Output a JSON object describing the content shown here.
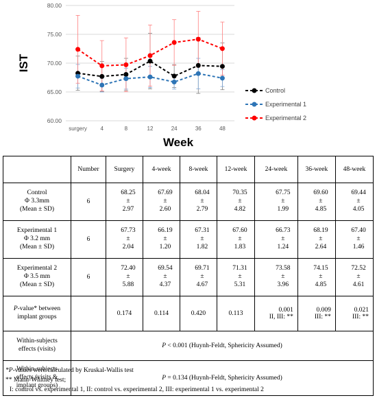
{
  "chart_data": {
    "type": "line",
    "ylabel": "IST",
    "xlabel": "Week",
    "categories": [
      "surgery",
      "4",
      "8",
      "12",
      "24",
      "36",
      "48"
    ],
    "ylim": [
      60,
      80
    ],
    "yticks": [
      "60.00",
      "65.00",
      "70.00",
      "75.00",
      "80.00"
    ],
    "legend_position": "right",
    "series": [
      {
        "name": "Control",
        "color": "#000000",
        "values": [
          68.25,
          67.69,
          68.04,
          70.35,
          67.75,
          69.6,
          69.44
        ],
        "sd": [
          2.97,
          2.6,
          2.79,
          4.82,
          1.99,
          4.85,
          4.05
        ]
      },
      {
        "name": "Experimental 1",
        "color": "#2e75b6",
        "values": [
          67.73,
          66.19,
          67.31,
          67.6,
          66.73,
          68.19,
          67.4
        ],
        "sd": [
          2.04,
          1.2,
          1.82,
          1.83,
          1.24,
          2.64,
          1.46
        ]
      },
      {
        "name": "Experimental 2",
        "color": "#ff0000",
        "values": [
          72.4,
          69.54,
          69.71,
          71.31,
          73.58,
          74.15,
          72.52
        ],
        "sd": [
          5.88,
          4.37,
          4.67,
          5.31,
          3.96,
          4.85,
          4.61
        ]
      }
    ]
  },
  "table": {
    "headers": [
      "",
      "Number",
      "Surgery",
      "4-week",
      "8-week",
      "12-week",
      "24-week",
      "36-week",
      "48-week"
    ],
    "pm": "±",
    "rows": [
      {
        "name": "Control",
        "size": "Φ 3.3mm",
        "stat": "(Mean ± SD)",
        "n": "6",
        "vals": [
          [
            "68.25",
            "2.97"
          ],
          [
            "67.69",
            "2.60"
          ],
          [
            "68.04",
            "2.79"
          ],
          [
            "70.35",
            "4.82"
          ],
          [
            "67.75",
            "1.99"
          ],
          [
            "69.60",
            "4.85"
          ],
          [
            "69.44",
            "4.05"
          ]
        ]
      },
      {
        "name": "Experimental 1",
        "size": "Φ 3.2 mm",
        "stat": "(Mean ± SD)",
        "n": "6",
        "vals": [
          [
            "67.73",
            "2.04"
          ],
          [
            "66.19",
            "1.20"
          ],
          [
            "67.31",
            "1.82"
          ],
          [
            "67.60",
            "1.83"
          ],
          [
            "66.73",
            "1.24"
          ],
          [
            "68.19",
            "2.64"
          ],
          [
            "67.40",
            "1.46"
          ]
        ]
      },
      {
        "name": "Experimental 2",
        "size": "Φ 3.5 mm",
        "stat": "(Mean ± SD)",
        "n": "6",
        "vals": [
          [
            "72.40",
            "5.88"
          ],
          [
            "69.54",
            "4.37"
          ],
          [
            "69.71",
            "4.67"
          ],
          [
            "71.31",
            "5.31"
          ],
          [
            "73.58",
            "3.96"
          ],
          [
            "74.15",
            "4.85"
          ],
          [
            "72.52",
            "4.61"
          ]
        ]
      }
    ],
    "pvalue": {
      "label_p": "P",
      "label_rest": "-value* between",
      "label_2": "implant groups",
      "values": [
        "0.174",
        "0.114",
        "0.420",
        "0.113",
        "0.001",
        "0.009",
        "0.021"
      ],
      "extras": [
        "",
        "",
        "",
        "",
        "II, III: **",
        "III: **",
        "III: **"
      ]
    },
    "within1": {
      "label1": "Within-subjects",
      "label2": "effects (visits)",
      "p": "P",
      "text": " < 0.001 (Huynh-Feldt, Sphericity Assumed)"
    },
    "within2": {
      "label1": "Within-subjects",
      "label2": "effects (visits &",
      "label3": "implant groups)",
      "p": "P",
      "text": " = 0.134 (Huynh-Feldt, Sphericity Assumed)"
    }
  },
  "notes": {
    "line1_p": "*P",
    "line1_rest": "-values were calculated by Kruskal-Wallis test",
    "line2": "** Mann-Whitney test;",
    "line3": "I: control vs. experimental 1, II: control vs. experimental 2, III: experimental 1 vs. experimental 2"
  }
}
